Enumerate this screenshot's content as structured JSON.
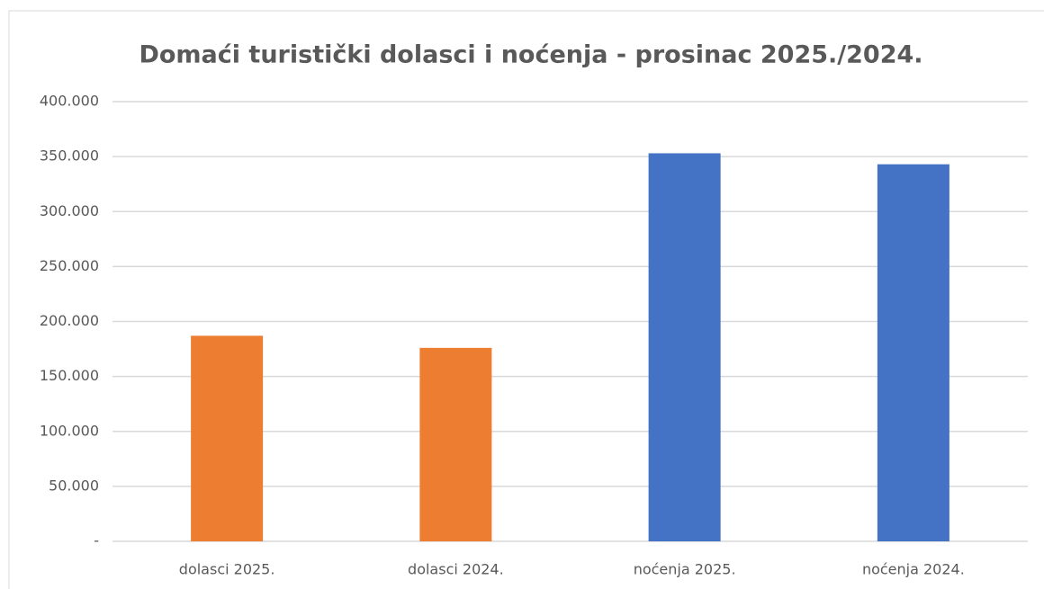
{
  "chart_data": {
    "type": "bar",
    "title": "Domaći turistički dolasci i noćenja - prosinac 2025./2024.",
    "categories": [
      "dolasci 2025.",
      "dolasci 2024.",
      "noćenja 2025.",
      "noćenja 2024."
    ],
    "values": [
      187000,
      176000,
      353000,
      343000
    ],
    "colors": [
      "#ed7d31",
      "#ed7d31",
      "#4472c4",
      "#4472c4"
    ],
    "ylim": [
      0,
      400000
    ],
    "yticks": [
      {
        "value": 0,
        "label": "-"
      },
      {
        "value": 50000,
        "label": "50.000"
      },
      {
        "value": 100000,
        "label": "100.000"
      },
      {
        "value": 150000,
        "label": "150.000"
      },
      {
        "value": 200000,
        "label": "200.000"
      },
      {
        "value": 250000,
        "label": "250.000"
      },
      {
        "value": 300000,
        "label": "300.000"
      },
      {
        "value": 350000,
        "label": "350.000"
      },
      {
        "value": 400000,
        "label": "400.000"
      }
    ],
    "grid": true
  }
}
